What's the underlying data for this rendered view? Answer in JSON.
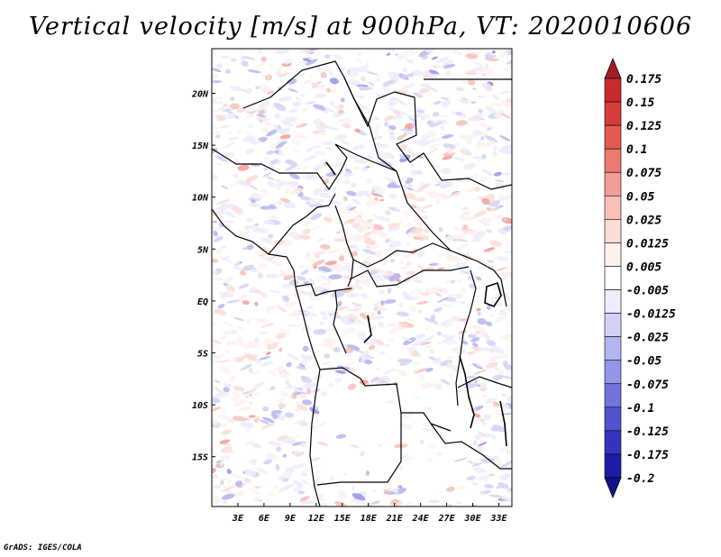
{
  "title": "Vertical velocity [m/s] at 900hPa, VT: 2020010606",
  "footer": "GrADS: IGES/COLA",
  "map": {
    "lon_range": [
      0,
      34.5
    ],
    "lat_range": [
      -19.8,
      24.3
    ],
    "x_ticks": [
      "3E",
      "6E",
      "9E",
      "12E",
      "15E",
      "18E",
      "21E",
      "24E",
      "27E",
      "30E",
      "33E"
    ],
    "x_tick_values": [
      3,
      6,
      9,
      12,
      15,
      18,
      21,
      24,
      27,
      30,
      33
    ],
    "y_ticks": [
      "20N",
      "15N",
      "10N",
      "5N",
      "EQ",
      "5S",
      "10S",
      "15S"
    ],
    "y_tick_values": [
      20,
      15,
      10,
      5,
      0,
      -5,
      -10,
      -15
    ]
  },
  "colorbar": {
    "labels": [
      "0.175",
      "0.15",
      "0.125",
      "0.1",
      "0.075",
      "0.05",
      "0.025",
      "0.0125",
      "0.005",
      "-0.005",
      "-0.0125",
      "-0.025",
      "-0.05",
      "-0.075",
      "-0.1",
      "-0.125",
      "-0.175",
      "-0.2"
    ],
    "colors": [
      "#a51d23",
      "#c62a2f",
      "#d73c3c",
      "#e45a53",
      "#ec7a72",
      "#f29d95",
      "#f7bfb8",
      "#fbdcd6",
      "#fdf1ee",
      "#ffffff",
      "#ececfb",
      "#d2d2f6",
      "#b4b4f0",
      "#9494e8",
      "#7373dd",
      "#5252ce",
      "#3333bd",
      "#1c1ca6",
      "#12128c"
    ]
  }
}
